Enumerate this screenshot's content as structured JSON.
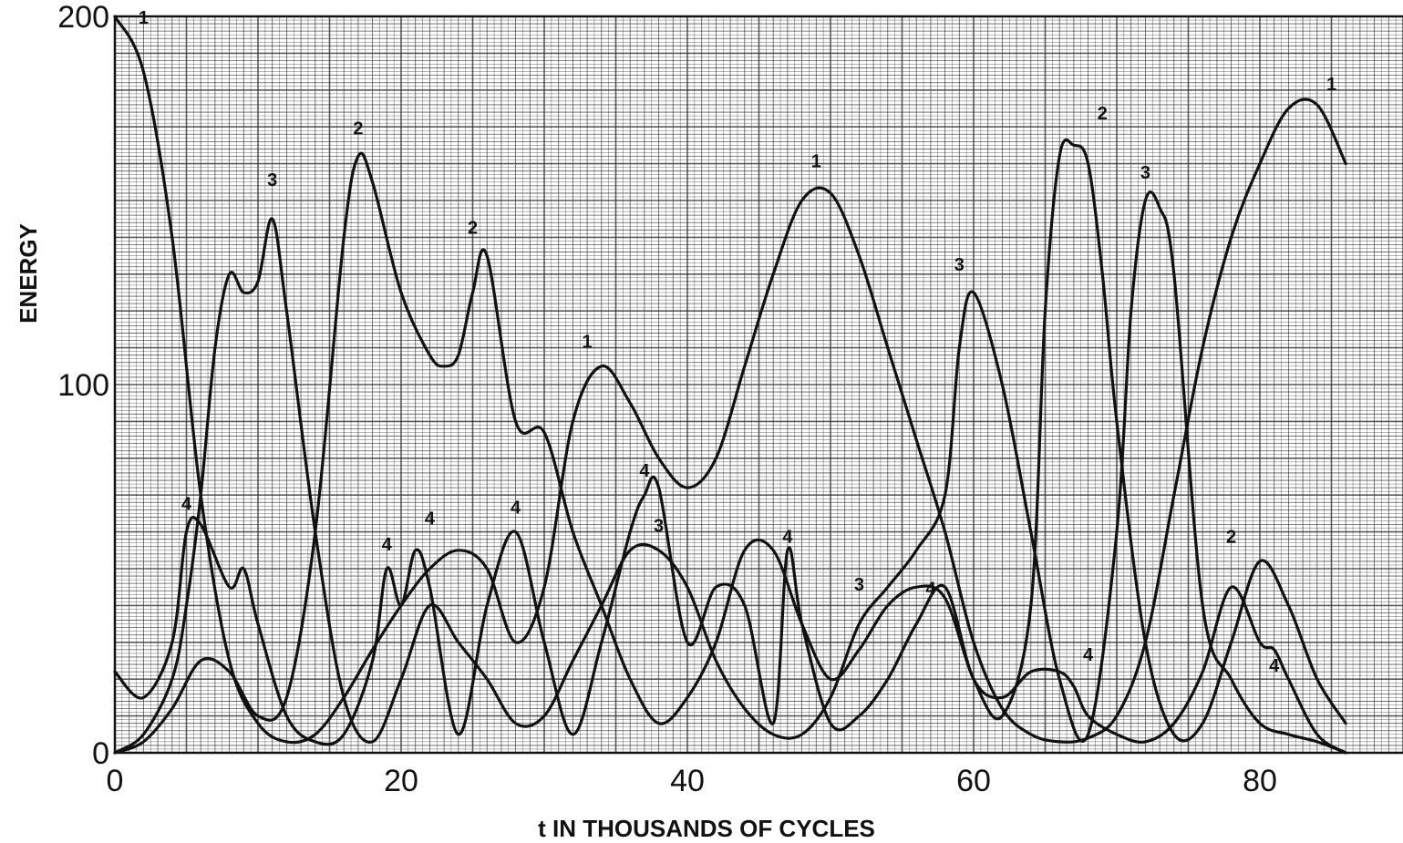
{
  "chart_data": {
    "type": "line",
    "title": "",
    "xlabel": "t  IN  THOUSANDS  OF  CYCLES",
    "ylabel": "ENERGY",
    "xlim": [
      0,
      90
    ],
    "ylim": [
      0,
      200
    ],
    "x_ticks": [
      0,
      20,
      40,
      60,
      80
    ],
    "x_tick_labels": [
      "0",
      "20",
      "40",
      "60",
      "80"
    ],
    "y_ticks": [
      0,
      100,
      200
    ],
    "y_tick_labels": [
      "0",
      "100",
      "200"
    ],
    "grid": true,
    "legend": "none",
    "line_color": "#111111",
    "grid_color": "#333333",
    "series": [
      {
        "name": "1",
        "x": [
          0,
          2,
          4,
          6,
          8,
          10,
          12,
          14,
          16,
          18,
          20,
          22,
          24,
          26,
          28,
          30,
          32,
          34,
          36,
          38,
          40,
          42,
          44,
          46,
          48,
          50,
          52,
          54,
          56,
          58,
          60,
          62,
          64,
          66,
          68,
          70,
          72,
          74,
          76,
          78,
          80,
          82,
          84,
          86
        ],
        "y": [
          200,
          185,
          140,
          70,
          25,
          8,
          3,
          5,
          15,
          28,
          40,
          50,
          55,
          50,
          30,
          45,
          90,
          105,
          95,
          80,
          72,
          80,
          105,
          130,
          150,
          152,
          135,
          110,
          85,
          60,
          30,
          12,
          5,
          3,
          4,
          10,
          30,
          70,
          110,
          140,
          160,
          175,
          176,
          160
        ],
        "labels": [
          {
            "text": "1",
            "x": 2,
            "y": 198
          },
          {
            "text": "1",
            "x": 33,
            "y": 110
          },
          {
            "text": "1",
            "x": 49,
            "y": 159
          },
          {
            "text": "1",
            "x": 85,
            "y": 180
          }
        ]
      },
      {
        "name": "2",
        "x": [
          0,
          2,
          4,
          6,
          8,
          10,
          12,
          14,
          16,
          17,
          18,
          20,
          22,
          23,
          24,
          25,
          26,
          28,
          30,
          32,
          34,
          36,
          38,
          40,
          42,
          44,
          46,
          48,
          50,
          52,
          54,
          56,
          58,
          60,
          62,
          64,
          65,
          66,
          67,
          68,
          69,
          70,
          72,
          74,
          76,
          78,
          80,
          82,
          84,
          86
        ],
        "y": [
          0,
          3,
          12,
          25,
          22,
          10,
          15,
          60,
          140,
          162,
          155,
          125,
          108,
          105,
          108,
          125,
          135,
          90,
          87,
          60,
          40,
          20,
          8,
          15,
          30,
          55,
          55,
          35,
          20,
          28,
          40,
          45,
          42,
          20,
          10,
          40,
          120,
          162,
          165,
          160,
          130,
          90,
          30,
          5,
          8,
          30,
          52,
          40,
          20,
          8
        ],
        "labels": [
          {
            "text": "2",
            "x": 17,
            "y": 168
          },
          {
            "text": "2",
            "x": 25,
            "y": 141
          },
          {
            "text": "2",
            "x": 69,
            "y": 172
          },
          {
            "text": "2",
            "x": 78,
            "y": 57
          }
        ]
      },
      {
        "name": "3",
        "x": [
          0,
          2,
          4,
          5,
          6,
          7,
          8,
          9,
          10,
          11,
          12,
          14,
          16,
          18,
          20,
          22,
          24,
          26,
          28,
          30,
          32,
          34,
          36,
          38,
          40,
          42,
          44,
          46,
          48,
          50,
          52,
          54,
          56,
          58,
          59,
          60,
          62,
          64,
          66,
          68,
          70,
          71,
          72,
          73,
          74,
          76,
          78,
          80,
          82,
          84,
          86
        ],
        "y": [
          0,
          5,
          20,
          40,
          70,
          110,
          130,
          125,
          128,
          145,
          120,
          60,
          15,
          3,
          20,
          40,
          30,
          20,
          8,
          10,
          25,
          40,
          55,
          55,
          45,
          25,
          12,
          5,
          5,
          15,
          35,
          45,
          55,
          70,
          110,
          125,
          100,
          60,
          20,
          5,
          60,
          120,
          150,
          148,
          130,
          40,
          20,
          8,
          5,
          3,
          0
        ],
        "labels": [
          {
            "text": "3",
            "x": 11,
            "y": 154
          },
          {
            "text": "3",
            "x": 38,
            "y": 60
          },
          {
            "text": "3",
            "x": 52,
            "y": 44
          },
          {
            "text": "3",
            "x": 59,
            "y": 131
          },
          {
            "text": "3",
            "x": 72,
            "y": 156
          }
        ]
      },
      {
        "name": "4",
        "x": [
          0,
          2,
          4,
          5,
          6,
          8,
          9,
          10,
          12,
          14,
          16,
          18,
          19,
          20,
          21,
          22,
          24,
          26,
          28,
          30,
          32,
          34,
          36,
          37,
          38,
          40,
          42,
          44,
          46,
          47,
          48,
          50,
          52,
          54,
          56,
          58,
          60,
          62,
          64,
          66,
          67,
          68,
          70,
          72,
          74,
          76,
          78,
          80,
          81,
          82,
          84,
          86
        ],
        "y": [
          22,
          15,
          30,
          60,
          62,
          45,
          50,
          35,
          10,
          3,
          5,
          25,
          50,
          40,
          55,
          45,
          5,
          40,
          60,
          30,
          5,
          30,
          60,
          70,
          72,
          30,
          45,
          40,
          8,
          55,
          35,
          8,
          10,
          20,
          35,
          45,
          20,
          15,
          22,
          22,
          18,
          10,
          5,
          3,
          8,
          22,
          45,
          30,
          28,
          20,
          5,
          0
        ],
        "labels": [
          {
            "text": "4",
            "x": 5,
            "y": 66
          },
          {
            "text": "4",
            "x": 19,
            "y": 55
          },
          {
            "text": "4",
            "x": 22,
            "y": 62
          },
          {
            "text": "4",
            "x": 28,
            "y": 65
          },
          {
            "text": "4",
            "x": 37,
            "y": 75
          },
          {
            "text": "4",
            "x": 47,
            "y": 57
          },
          {
            "text": "4",
            "x": 57,
            "y": 43
          },
          {
            "text": "4",
            "x": 68,
            "y": 25
          },
          {
            "text": "4",
            "x": 81,
            "y": 22
          }
        ]
      }
    ]
  }
}
